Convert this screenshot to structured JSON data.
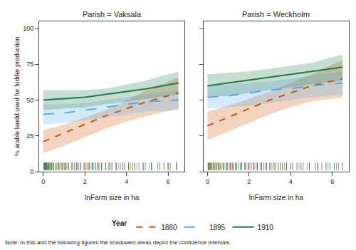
{
  "chart_data": [
    {
      "type": "line",
      "title": "Parish = Vaksala",
      "xlabel": "lnFarm size in ha",
      "ylabel": "% arable landd used for fodder production",
      "x": [
        0,
        1,
        2,
        3,
        4,
        5,
        6.5
      ],
      "series": [
        {
          "name": "1880",
          "color": "#CC5500",
          "line_style": "dash",
          "values": [
            21,
            27,
            33,
            39,
            44,
            49,
            55
          ],
          "ci_upper": [
            29,
            33,
            38,
            43,
            50,
            57,
            66
          ],
          "ci_lower": [
            13,
            18,
            24,
            30,
            35,
            39,
            44
          ],
          "rug": [
            0.05,
            0.08,
            0.12,
            0.15,
            0.18,
            0.22,
            0.26,
            0.35,
            0.42,
            0.5,
            0.6,
            0.7,
            0.8,
            0.9,
            1.0,
            1.1,
            1.2,
            1.35,
            1.5,
            1.65,
            1.8,
            1.95,
            2.1,
            2.2,
            2.35,
            2.5,
            2.65,
            2.8,
            3.0,
            3.15,
            3.3,
            3.5,
            3.7,
            3.9,
            4.1,
            4.3,
            4.6,
            4.9,
            5.2,
            5.5,
            5.8,
            6.1,
            6.4
          ]
        },
        {
          "name": "1895",
          "color": "#55AAEE",
          "line_style": "longdash",
          "values": [
            40,
            41,
            43,
            45,
            47,
            49,
            50
          ],
          "ci_upper": [
            47,
            47,
            48,
            50,
            52,
            54,
            57
          ],
          "ci_lower": [
            33,
            34,
            36,
            38,
            40,
            42,
            43
          ],
          "rug": [
            0.1,
            0.3,
            0.5,
            0.7,
            1.0,
            1.2,
            1.5,
            1.7,
            2.0,
            2.3,
            2.5,
            2.7,
            3.0,
            3.3,
            3.6,
            3.9,
            4.2,
            4.5,
            4.8,
            5.1,
            5.5,
            6.0
          ]
        },
        {
          "name": "1910",
          "color": "#1A7A4A",
          "line_style": "solid",
          "values": [
            50,
            51,
            52,
            54,
            56,
            58,
            62
          ],
          "ci_upper": [
            57,
            57,
            57,
            58,
            61,
            64,
            70
          ],
          "ci_lower": [
            43,
            44,
            45,
            47,
            49,
            51,
            54
          ],
          "rug": [
            0.02,
            0.06,
            0.1,
            0.14,
            0.18,
            0.25,
            0.32,
            0.4,
            0.5,
            0.62,
            0.75,
            0.9,
            1.05,
            1.2,
            1.4,
            1.6,
            1.8,
            2.0,
            2.2,
            2.4,
            2.6,
            2.8,
            3.0,
            3.2,
            3.5,
            3.8,
            4.1,
            4.4,
            4.8,
            5.2,
            5.6,
            6.0,
            6.4
          ]
        }
      ],
      "xlim": [
        -0.2,
        6.8
      ],
      "ylim": [
        0,
        105
      ],
      "xticks": [
        0,
        2,
        4,
        6
      ],
      "yticks": [
        0,
        25,
        50,
        75,
        100
      ],
      "grid": false,
      "legend": "bottom",
      "legend_title": "Year",
      "note": "Note: In this and the following figures the shadowed areas depict the confidence intervals."
    },
    {
      "type": "line",
      "title": "Parish = Weckholm",
      "xlabel": "lnFarm size in ha",
      "x": [
        0,
        1,
        2,
        3,
        4,
        5,
        6.5
      ],
      "series": [
        {
          "name": "1880",
          "color": "#CC5500",
          "line_style": "dash",
          "values": [
            32,
            38,
            44,
            50,
            55,
            60,
            65
          ],
          "ci_upper": [
            42,
            46,
            51,
            56,
            62,
            68,
            78
          ],
          "ci_lower": [
            22,
            28,
            34,
            40,
            45,
            49,
            52
          ],
          "rug": [
            0.05,
            0.1,
            0.2,
            0.3,
            0.45,
            0.6,
            0.75,
            0.9,
            1.05,
            1.2,
            1.35,
            1.5,
            1.65,
            1.8,
            1.95,
            2.1,
            2.25,
            2.4,
            2.55,
            2.7,
            2.85,
            3.0,
            3.2,
            3.4,
            3.6,
            3.8,
            4.0,
            4.3,
            4.6,
            4.9,
            5.2,
            5.5,
            5.9,
            6.3
          ]
        },
        {
          "name": "1895",
          "color": "#55AAEE",
          "line_style": "longdash",
          "values": [
            52,
            53,
            55,
            57,
            58,
            60,
            62
          ],
          "ci_upper": [
            60,
            61,
            62,
            63,
            65,
            67,
            70
          ],
          "ci_lower": [
            44,
            45,
            46,
            48,
            50,
            52,
            54
          ],
          "rug": [
            0.15,
            0.35,
            0.55,
            0.75,
            0.95,
            1.15,
            1.35,
            1.6,
            1.85,
            2.1,
            2.35,
            2.6,
            2.85,
            3.1,
            3.4,
            3.7,
            4.0,
            4.4,
            4.8,
            5.3,
            5.8,
            6.2
          ]
        },
        {
          "name": "1910",
          "color": "#1A7A4A",
          "line_style": "solid",
          "values": [
            60,
            62,
            64,
            66,
            68,
            70,
            73
          ],
          "ci_upper": [
            68,
            69,
            70,
            72,
            74,
            76,
            82
          ],
          "ci_lower": [
            52,
            53,
            55,
            57,
            59,
            61,
            64
          ],
          "rug": [
            0.03,
            0.08,
            0.15,
            0.22,
            0.3,
            0.4,
            0.52,
            0.65,
            0.8,
            0.95,
            1.1,
            1.25,
            1.4,
            1.6,
            1.8,
            2.0,
            2.2,
            2.4,
            2.6,
            2.8,
            3.0,
            3.25,
            3.5,
            3.8,
            4.1,
            4.5,
            4.9,
            5.3,
            5.7,
            6.1,
            6.5
          ]
        }
      ],
      "xlim": [
        -0.2,
        6.8
      ],
      "ylim": [
        0,
        105
      ],
      "xticks": [
        0,
        2,
        4,
        6
      ],
      "yticks": [
        0,
        25,
        50,
        75,
        100
      ],
      "grid": false,
      "tick_labels": "x"
    }
  ]
}
